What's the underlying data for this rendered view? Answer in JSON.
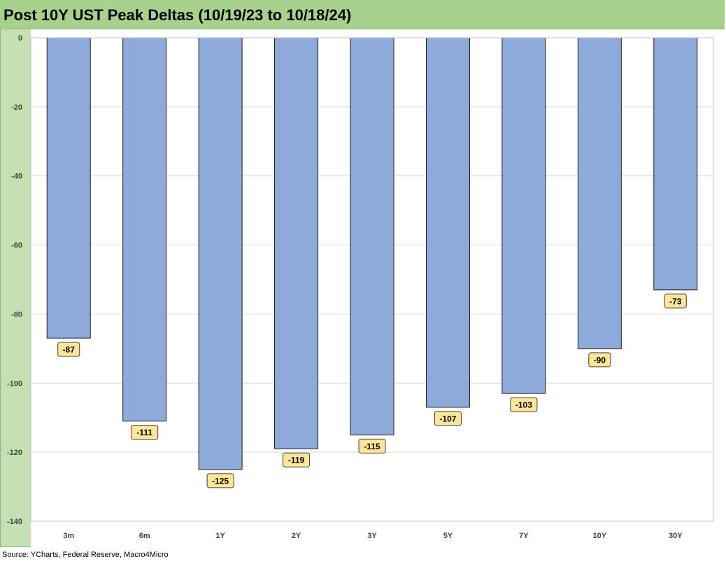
{
  "title": "Post 10Y UST Peak Deltas (10/19/23 to 10/18/24)",
  "source": "Source: YCharts, Federal Reserve, Macro4Micro",
  "colors": {
    "bar_fill": "#8eaadb",
    "bar_stroke": "#1f1f1f",
    "label_fill": "#ffe699",
    "label_stroke": "#404040",
    "frame": "#c5e0b3",
    "title_bar": "#a9d18e",
    "grid": "#d9d9d9"
  },
  "chart_data": {
    "type": "bar",
    "title": "Post 10Y UST Peak Deltas (10/19/23 to 10/18/24)",
    "categories": [
      "3m",
      "6m",
      "1Y",
      "2Y",
      "3Y",
      "5Y",
      "7Y",
      "10Y",
      "30Y"
    ],
    "values": [
      -87,
      -111,
      -125,
      -119,
      -115,
      -107,
      -103,
      -90,
      -73
    ],
    "data_labels": [
      "-87",
      "-111",
      "-125",
      "-119",
      "-115",
      "-107",
      "-103",
      "-90",
      "-73"
    ],
    "y_ticks": [
      "0",
      "-20",
      "-40",
      "-60",
      "-80",
      "-100",
      "-120",
      "-140"
    ],
    "y_tick_values": [
      0,
      -20,
      -40,
      -60,
      -80,
      -100,
      -120,
      -140
    ],
    "ylim": [
      -140,
      0
    ],
    "xlabel": "",
    "ylabel": "",
    "grid": true,
    "legend": "none"
  }
}
